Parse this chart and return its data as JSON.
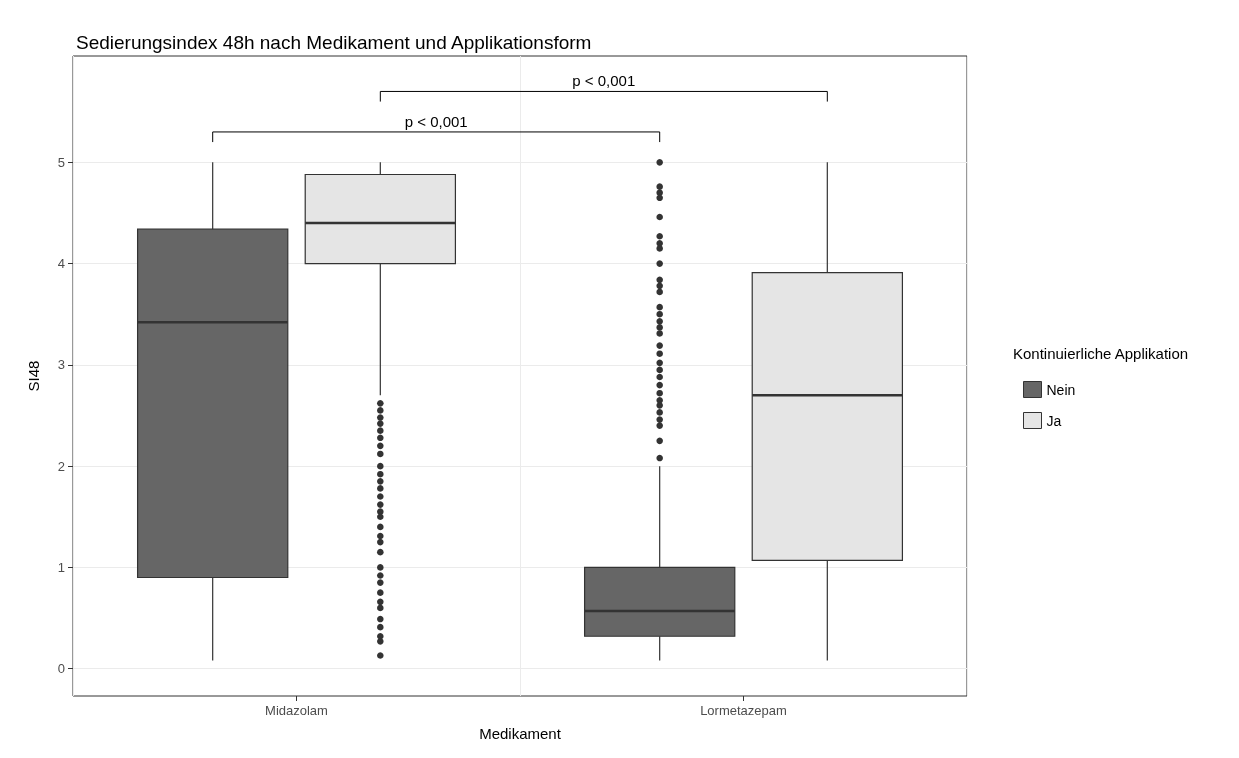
{
  "chart_data": {
    "type": "box",
    "title": "Sedierungsindex 48h nach Medikament und Applikationsform",
    "xlabel": "Medikament",
    "ylabel": "SI48",
    "legend_title": "Kontinuierliche Applikation",
    "legend": "right",
    "grid": true,
    "categories": [
      "Midazolam",
      "Lormetazepam"
    ],
    "ylim": [
      -0.27,
      6.05
    ],
    "yticks": [
      0,
      1,
      2,
      3,
      4,
      5
    ],
    "series": [
      {
        "name": "Nein",
        "color": "#666666",
        "boxes": [
          {
            "low": 0.08,
            "q1": 0.9,
            "median": 3.42,
            "q3": 4.34,
            "high": 5
          },
          {
            "low": 0.08,
            "q1": 0.32,
            "median": 0.57,
            "q3": 1.0,
            "high": 2.0,
            "outliers": [
              5.0,
              4.76,
              4.7,
              4.65,
              4.46,
              4.27,
              4.2,
              4.15,
              4.0,
              3.84,
              3.78,
              3.72,
              3.57,
              3.5,
              3.43,
              3.37,
              3.31,
              3.19,
              3.11,
              3.02,
              2.95,
              2.88,
              2.8,
              2.72,
              2.65,
              2.6,
              2.53,
              2.46,
              2.4,
              2.25,
              2.08
            ]
          }
        ]
      },
      {
        "name": "Ja",
        "color": "#e5e5e5",
        "boxes": [
          {
            "low": 2.7,
            "q1": 4.0,
            "median": 4.4,
            "q3": 4.88,
            "high": 5,
            "outliers": [
              2.62,
              2.55,
              2.48,
              2.42,
              2.35,
              2.28,
              2.2,
              2.12,
              2.0,
              1.92,
              1.85,
              1.78,
              1.7,
              1.62,
              1.55,
              1.5,
              1.4,
              1.31,
              1.25,
              1.15,
              1.0,
              0.92,
              0.85,
              0.75,
              0.66,
              0.6,
              0.49,
              0.41,
              0.32,
              0.27,
              0.13
            ]
          },
          {
            "low": 0.08,
            "q1": 1.07,
            "median": 2.7,
            "q3": 3.91,
            "high": 5
          }
        ]
      }
    ],
    "annotations": [
      "p < 0,001",
      "p < 0,001"
    ]
  }
}
